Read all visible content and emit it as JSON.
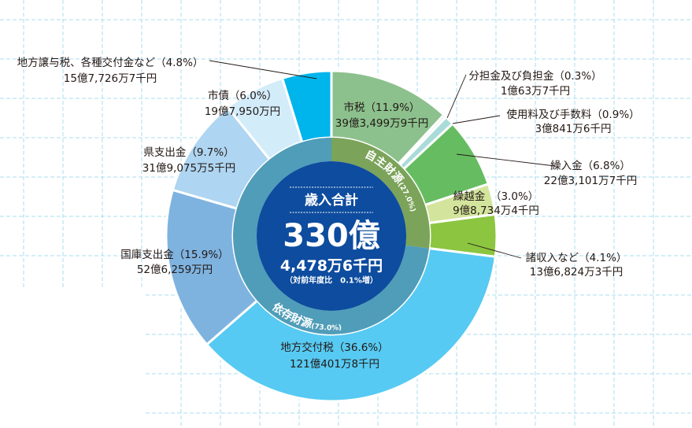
{
  "chart_data": {
    "type": "pie",
    "variant": "donut",
    "center": {
      "title": "歳入合計",
      "total_main": "330億",
      "total_sub": "4,478万6千円",
      "change": "（対前年度比　0.1%増）"
    },
    "groups": [
      {
        "name": "自主財源",
        "percent_label": "(27.0%)",
        "percent": 27.0,
        "color": "#7ba35a"
      },
      {
        "name": "依存財源",
        "percent_label": "(73.0%)",
        "percent": 73.0,
        "color": "#509db9"
      }
    ],
    "slices": [
      {
        "label": "市税（11.9%）",
        "amount": "39億3,499万9千円",
        "percent": 11.9,
        "group": "自主財源",
        "color": "#8cc18d"
      },
      {
        "label": "分担金及び負担金（0.3%）",
        "amount": "1億63万7千円",
        "percent": 0.3,
        "group": "自主財源",
        "color": "#dcefe0"
      },
      {
        "label": "使用料及び手数料（0.9%）",
        "amount": "3億841万6千円",
        "percent": 0.9,
        "group": "自主財源",
        "color": "#a9dbd9"
      },
      {
        "label": "繰入金（6.8%）",
        "amount": "22億3,101万7千円",
        "percent": 6.8,
        "group": "自主財源",
        "color": "#66bd61"
      },
      {
        "label": "繰越金　（3.0%）",
        "amount": "9億8,734万4千円",
        "percent": 3.0,
        "group": "自主財源",
        "color": "#d3e59d"
      },
      {
        "label": "諸収入など（4.1%）",
        "amount": "13億6,824万3千円",
        "percent": 4.1,
        "group": "自主財源",
        "color": "#8cc540"
      },
      {
        "label": "地方交付税（36.6%）",
        "amount": "121億401万8千円",
        "percent": 36.6,
        "group": "依存財源",
        "color": "#56caf2"
      },
      {
        "label": "国庫支出金（15.9%）",
        "amount": "52億6,259万円",
        "percent": 15.9,
        "group": "依存財源",
        "color": "#7eb3e0"
      },
      {
        "label": "県支出金（9.7%）",
        "amount": "31億9,075万5千円",
        "percent": 9.7,
        "group": "依存財源",
        "color": "#aed5f1"
      },
      {
        "label": "市債（6.0%）",
        "amount": "19億7,950万円",
        "percent": 6.0,
        "group": "依存財源",
        "color": "#d2ecfa"
      },
      {
        "label": "地方譲与税、各種交付金など（4.8%）",
        "amount": "15億7,726万7千円",
        "percent": 4.8,
        "group": "依存財源",
        "color": "#00b4ec"
      }
    ]
  }
}
